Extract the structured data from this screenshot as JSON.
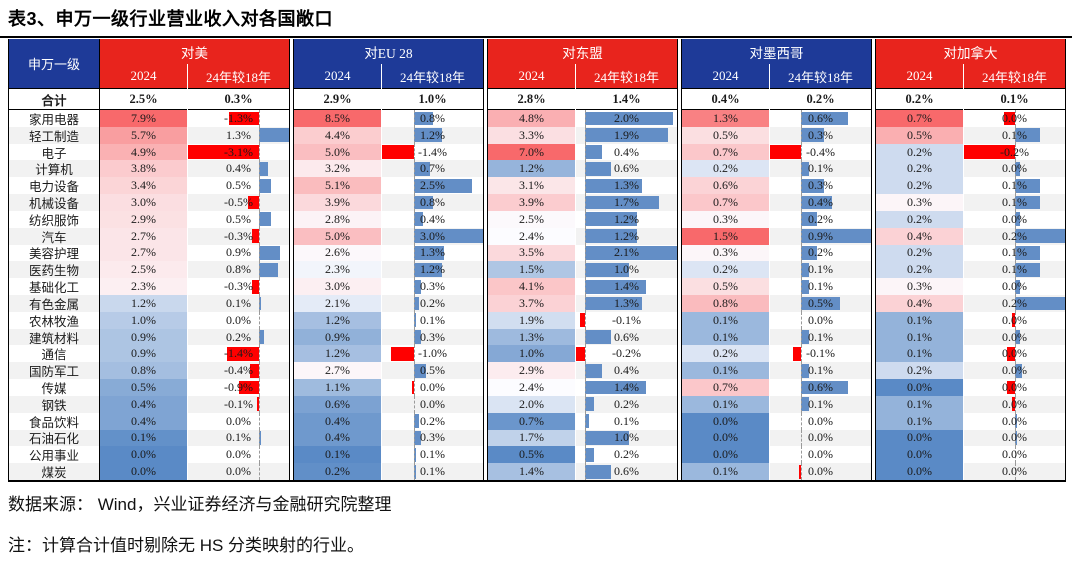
{
  "title": "表3、申万一级行业营业收入对各国敞口",
  "source_note": "数据来源： Wind，兴业证券经济与金融研究院整理",
  "footnote": "注：计算合计值时剔除无 HS 分类映射的行业。",
  "colors": {
    "header_navy": "#1E3A98",
    "header_red": "#E8241D",
    "scale_min_blue": "#5A8AC6",
    "scale_mid_white": "#FCFCFF",
    "scale_max_red": "#F8696B",
    "bar_positive": "#638EC6",
    "bar_negative": "#FF0000",
    "row_band": "#F2F2F2",
    "border": "#000000"
  },
  "chart_data": {
    "type": "heatmap",
    "title": "表3、申万一级行业营业收入对各国敞口",
    "row_header": "申万一级",
    "total_label": "合计",
    "unit": "%",
    "value_note": "each group has two columns: 2024 revenue exposure share and change of 2024 vs 2018; heat colors scale per 2024 column, data bars scale per change column; optional 3rd number in a cell is the underlying bar magnitude when displayed text rounds to 0.0%",
    "groups": [
      {
        "label": "对美",
        "sub": [
          "2024",
          "24年较18年"
        ],
        "header_color": "red"
      },
      {
        "label": "对EU 28",
        "sub": [
          "2024",
          "24年较18年"
        ],
        "header_color": "navy"
      },
      {
        "label": "对东盟",
        "sub": [
          "2024",
          "24年较18年"
        ],
        "header_color": "red"
      },
      {
        "label": "对墨西哥",
        "sub": [
          "2024",
          "24年较18年"
        ],
        "header_color": "navy"
      },
      {
        "label": "对加拿大",
        "sub": [
          "2024",
          "24年较18年"
        ],
        "header_color": "red"
      }
    ],
    "color_scale_midpoints": [
      1.75,
      2.45,
      2.4,
      0.25,
      0.28
    ],
    "total": [
      [
        2.5,
        0.3
      ],
      [
        2.9,
        1.0
      ],
      [
        2.8,
        1.4
      ],
      [
        0.4,
        0.2
      ],
      [
        0.2,
        0.1
      ]
    ],
    "rows": [
      {
        "name": "家用电器",
        "cells": [
          [
            7.9,
            -1.3
          ],
          [
            8.5,
            0.8
          ],
          [
            4.8,
            2.0
          ],
          [
            1.3,
            0.6
          ],
          [
            0.7,
            0.0,
            -0.04
          ]
        ]
      },
      {
        "name": "轻工制造",
        "cells": [
          [
            5.7,
            1.3
          ],
          [
            4.4,
            1.2
          ],
          [
            3.3,
            1.9
          ],
          [
            0.5,
            0.3
          ],
          [
            0.5,
            0.1
          ]
        ]
      },
      {
        "name": "电子",
        "cells": [
          [
            4.9,
            -3.1
          ],
          [
            5.0,
            -1.4
          ],
          [
            7.0,
            0.4
          ],
          [
            0.7,
            -0.4
          ],
          [
            0.2,
            -0.2
          ]
        ]
      },
      {
        "name": "计算机",
        "cells": [
          [
            3.8,
            0.4
          ],
          [
            3.2,
            0.7
          ],
          [
            1.2,
            0.6
          ],
          [
            0.2,
            0.1
          ],
          [
            0.2,
            0.0,
            0.02
          ]
        ]
      },
      {
        "name": "电力设备",
        "cells": [
          [
            3.4,
            0.5
          ],
          [
            5.1,
            2.5
          ],
          [
            3.1,
            1.3
          ],
          [
            0.6,
            0.3
          ],
          [
            0.2,
            0.1
          ]
        ]
      },
      {
        "name": "机械设备",
        "cells": [
          [
            3.0,
            -0.5
          ],
          [
            3.9,
            0.8
          ],
          [
            3.9,
            1.7
          ],
          [
            0.7,
            0.4
          ],
          [
            0.3,
            0.1
          ]
        ]
      },
      {
        "name": "纺织服饰",
        "cells": [
          [
            2.9,
            0.5
          ],
          [
            2.8,
            0.4
          ],
          [
            2.5,
            1.2
          ],
          [
            0.3,
            0.2
          ],
          [
            0.2,
            0.0,
            0.02
          ]
        ]
      },
      {
        "name": "汽车",
        "cells": [
          [
            2.7,
            -0.3
          ],
          [
            5.0,
            3.0
          ],
          [
            2.4,
            1.2
          ],
          [
            1.5,
            0.9
          ],
          [
            0.4,
            0.2
          ]
        ]
      },
      {
        "name": "美容护理",
        "cells": [
          [
            2.7,
            0.9
          ],
          [
            2.6,
            1.3
          ],
          [
            3.5,
            2.1
          ],
          [
            0.3,
            0.2
          ],
          [
            0.2,
            0.1
          ]
        ]
      },
      {
        "name": "医药生物",
        "cells": [
          [
            2.5,
            0.8
          ],
          [
            2.3,
            1.2
          ],
          [
            1.5,
            1.0
          ],
          [
            0.2,
            0.1
          ],
          [
            0.2,
            0.1
          ]
        ]
      },
      {
        "name": "基础化工",
        "cells": [
          [
            2.3,
            -0.3
          ],
          [
            3.0,
            0.3
          ],
          [
            4.1,
            1.4
          ],
          [
            0.5,
            0.1
          ],
          [
            0.3,
            0.0,
            0.02
          ]
        ]
      },
      {
        "name": "有色金属",
        "cells": [
          [
            1.2,
            0.1
          ],
          [
            2.1,
            0.2
          ],
          [
            3.7,
            1.3
          ],
          [
            0.8,
            0.5
          ],
          [
            0.4,
            0.2
          ]
        ]
      },
      {
        "name": "农林牧渔",
        "cells": [
          [
            1.0,
            0.0
          ],
          [
            1.2,
            0.1
          ],
          [
            1.9,
            -0.1
          ],
          [
            0.1,
            0.0
          ],
          [
            0.1,
            0.0,
            -0.01
          ]
        ]
      },
      {
        "name": "建筑材料",
        "cells": [
          [
            0.9,
            0.2
          ],
          [
            0.9,
            0.3
          ],
          [
            1.3,
            0.6
          ],
          [
            0.1,
            0.1
          ],
          [
            0.1,
            0.0,
            0.02
          ]
        ]
      },
      {
        "name": "通信",
        "cells": [
          [
            0.9,
            -1.4
          ],
          [
            1.2,
            -1.0
          ],
          [
            1.0,
            -0.2
          ],
          [
            0.2,
            -0.1
          ],
          [
            0.1,
            0.0,
            -0.03
          ]
        ]
      },
      {
        "name": "国防军工",
        "cells": [
          [
            0.8,
            -0.4
          ],
          [
            2.7,
            0.5
          ],
          [
            2.9,
            0.4
          ],
          [
            0.1,
            0.1
          ],
          [
            0.2,
            0.0,
            0.03
          ]
        ]
      },
      {
        "name": "传媒",
        "cells": [
          [
            0.5,
            -0.9
          ],
          [
            1.1,
            0.0,
            -0.01
          ],
          [
            2.4,
            1.4
          ],
          [
            0.7,
            0.6
          ],
          [
            0.0,
            0.0,
            -0.03
          ]
        ]
      },
      {
        "name": "钢铁",
        "cells": [
          [
            0.4,
            -0.1
          ],
          [
            0.6,
            0.0
          ],
          [
            2.0,
            0.2
          ],
          [
            0.1,
            0.1
          ],
          [
            0.1,
            0.0,
            -0.01
          ]
        ]
      },
      {
        "name": "食品饮料",
        "cells": [
          [
            0.4,
            0.0
          ],
          [
            0.4,
            0.2
          ],
          [
            0.7,
            0.1
          ],
          [
            0.0,
            0.0
          ],
          [
            0.1,
            0.0,
            0.01
          ]
        ]
      },
      {
        "name": "石油石化",
        "cells": [
          [
            0.1,
            0.1
          ],
          [
            0.4,
            0.3
          ],
          [
            1.7,
            1.0
          ],
          [
            0.0,
            0.0
          ],
          [
            0.0,
            0.0,
            0.01
          ]
        ]
      },
      {
        "name": "公用事业",
        "cells": [
          [
            0.0,
            0.0
          ],
          [
            0.1,
            0.1
          ],
          [
            0.5,
            0.2
          ],
          [
            0.0,
            0.0
          ],
          [
            0.0,
            0.0
          ]
        ]
      },
      {
        "name": "煤炭",
        "cells": [
          [
            0.0,
            0.0
          ],
          [
            0.2,
            0.1
          ],
          [
            1.4,
            0.6
          ],
          [
            0.1,
            0.0,
            -0.01
          ],
          [
            0.0,
            0.0
          ]
        ]
      }
    ]
  }
}
